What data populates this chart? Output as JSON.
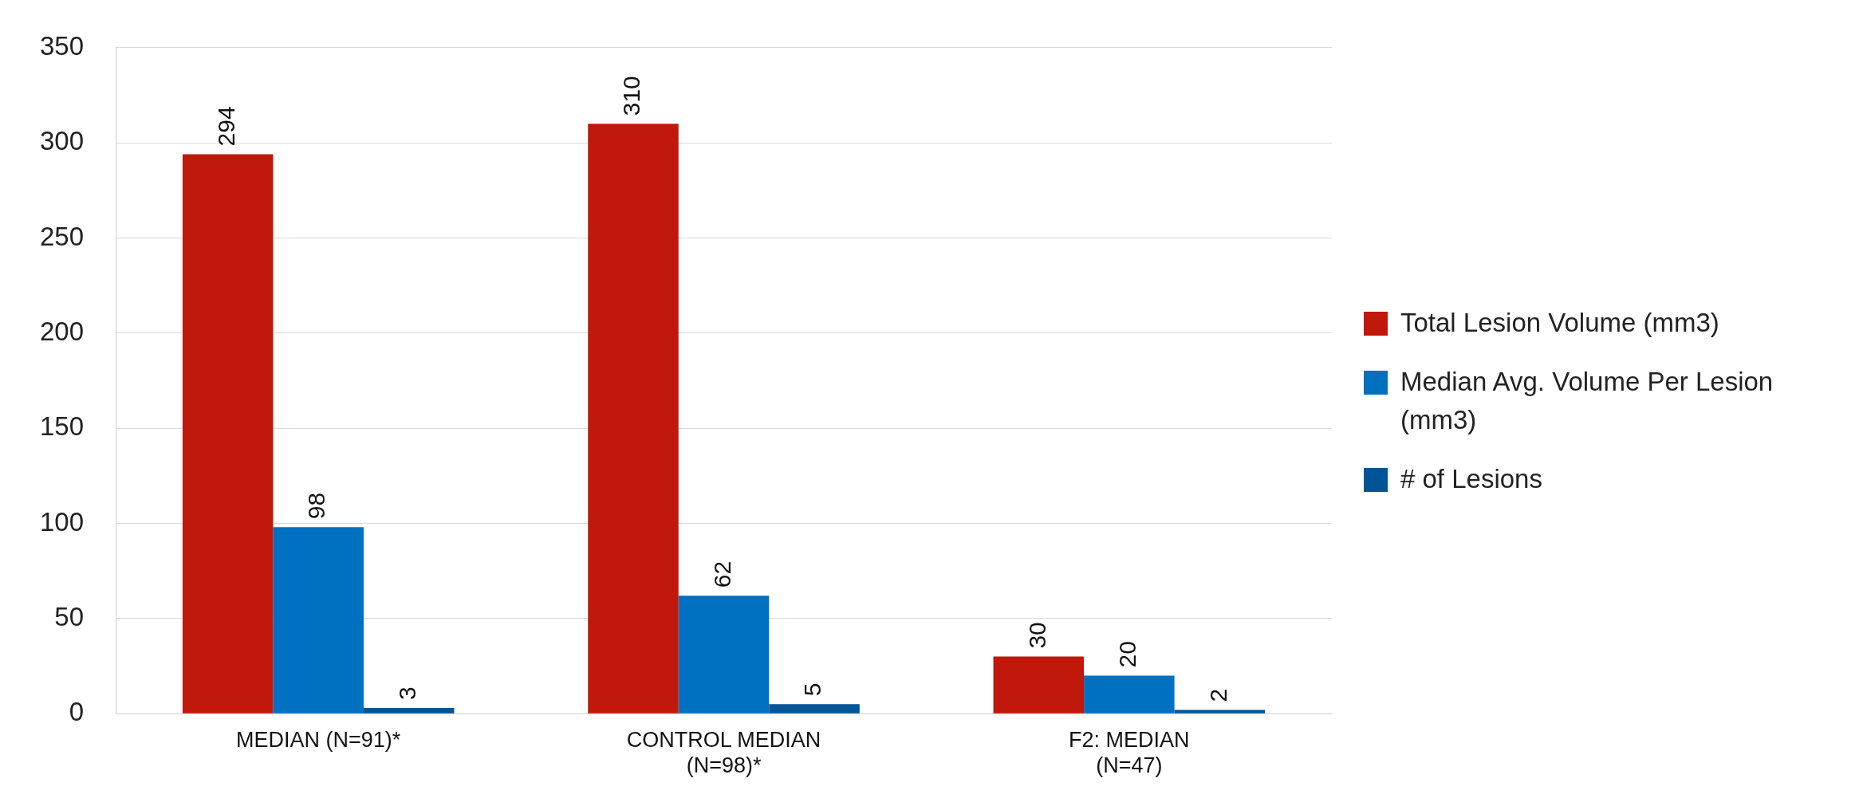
{
  "chart_data": {
    "type": "bar",
    "categories": [
      "MEDIAN (N=91)*",
      "CONTROL MEDIAN (N=98)*",
      "F2: MEDIAN (N=47)"
    ],
    "series": [
      {
        "name": "Total Lesion Volume (mm3)",
        "color": "#c0180a",
        "values": [
          294,
          310,
          30
        ]
      },
      {
        "name": "Median Avg. Volume Per Lesion (mm3)",
        "color": "#0070c0",
        "values": [
          98,
          62,
          20
        ]
      },
      {
        "name": "# of Lesions",
        "color": "#005596",
        "values": [
          3,
          5,
          2
        ]
      }
    ],
    "ylim": [
      0,
      350
    ],
    "yticks": [
      0,
      50,
      100,
      150,
      200,
      250,
      300,
      350
    ],
    "grid": "y",
    "legend": "right",
    "data_labels": true
  }
}
